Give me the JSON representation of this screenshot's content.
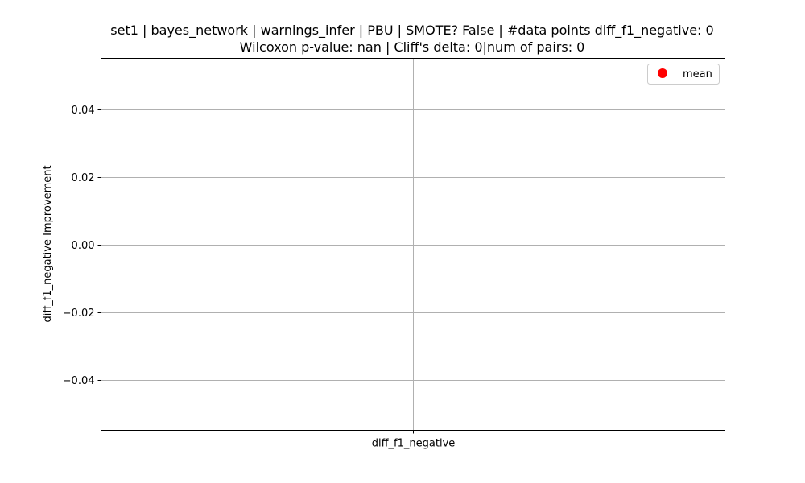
{
  "chart_data": {
    "type": "scatter",
    "title": "set1 | bayes_network | warnings_infer | PBU | SMOTE? False | #data points diff_f1_negative: 0",
    "subtitle": "Wilcoxon p-value: nan | Cliff's delta: 0|num of pairs: 0",
    "xlabel": "",
    "ylabel": "diff_f1_negative Improvement",
    "categories": [
      "diff_f1_negative"
    ],
    "ylim": [
      -0.055,
      0.055
    ],
    "yticks": [
      "−0.04",
      "−0.02",
      "0.00",
      "0.02",
      "0.04"
    ],
    "ytick_values": [
      -0.04,
      -0.02,
      0.0,
      0.02,
      0.04
    ],
    "grid": true,
    "legend_position": "top-right",
    "series": [
      {
        "name": "mean",
        "color": "#ff0000",
        "marker": "circle",
        "values": []
      }
    ],
    "colors": {
      "grid": "#b0b0b0",
      "axis": "#000000"
    }
  }
}
